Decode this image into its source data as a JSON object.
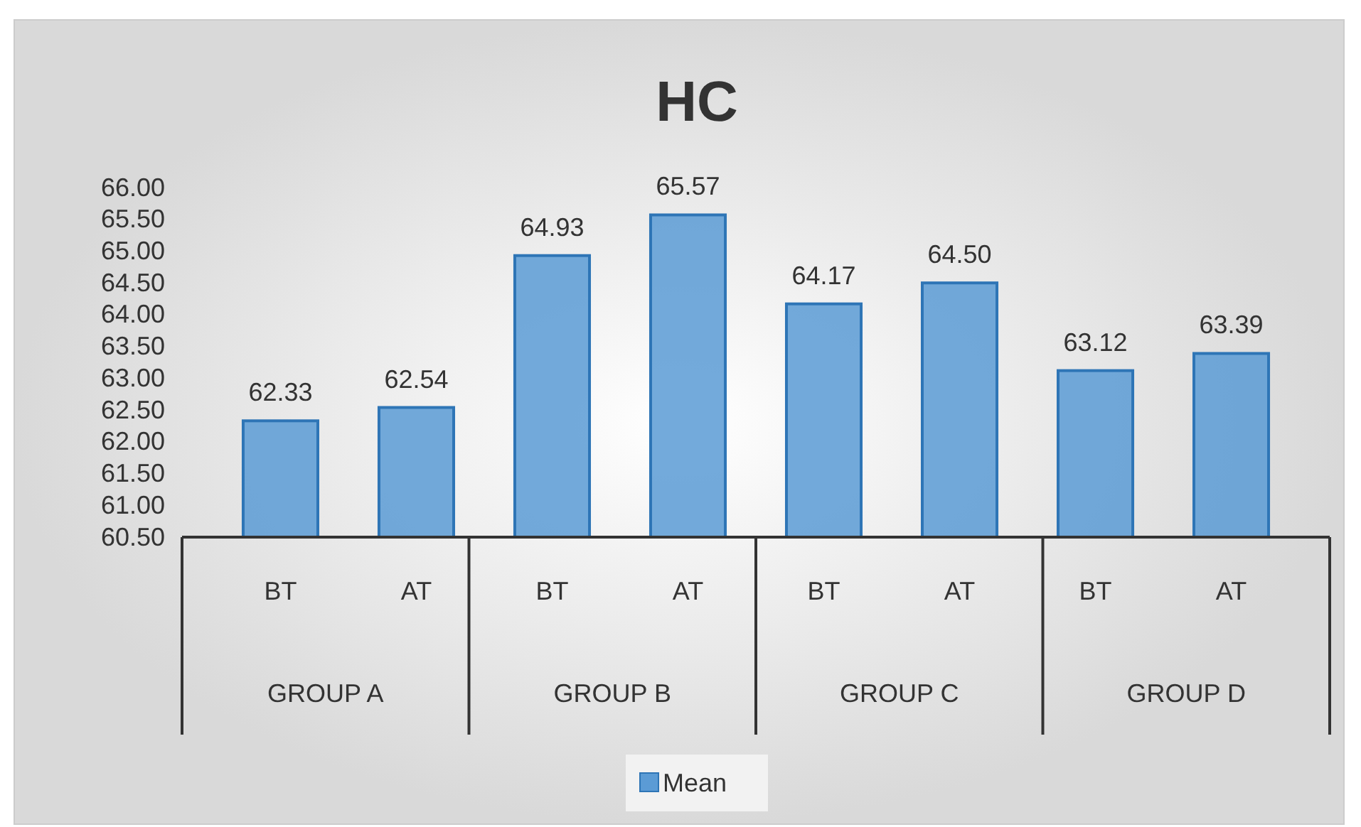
{
  "chart_data": {
    "type": "bar",
    "title": "HC",
    "categories": [
      "BT",
      "AT",
      "BT",
      "AT",
      "BT",
      "AT",
      "BT",
      "AT"
    ],
    "series": [
      {
        "name": "Mean",
        "color": "#5b9bd5",
        "values": [
          62.33,
          62.54,
          64.93,
          65.57,
          64.17,
          64.5,
          63.12,
          63.39
        ],
        "value_labels": [
          "62.33",
          "62.54",
          "64.93",
          "65.57",
          "64.17",
          "64.50",
          "63.12",
          "63.39"
        ]
      }
    ],
    "ylim": [
      60.5,
      66
    ],
    "yticks": [
      {
        "value": 60.5,
        "label": "60.50"
      },
      {
        "value": 61,
        "label": "61.00"
      },
      {
        "value": 61.5,
        "label": "61.50"
      },
      {
        "value": 62,
        "label": "62.00"
      },
      {
        "value": 62.5,
        "label": "62.50"
      },
      {
        "value": 63,
        "label": "63.00"
      },
      {
        "value": 63.5,
        "label": "63.50"
      },
      {
        "value": 64,
        "label": "64.00"
      },
      {
        "value": 64.5,
        "label": "64.50"
      },
      {
        "value": 65,
        "label": "65.00"
      },
      {
        "value": 65.5,
        "label": "65.50"
      },
      {
        "value": 66,
        "label": "66.00"
      }
    ],
    "annotations": [
      "GROUP A",
      "GROUP B",
      "GROUP C",
      "GROUP D"
    ],
    "grid": false,
    "legend": "bottom"
  }
}
